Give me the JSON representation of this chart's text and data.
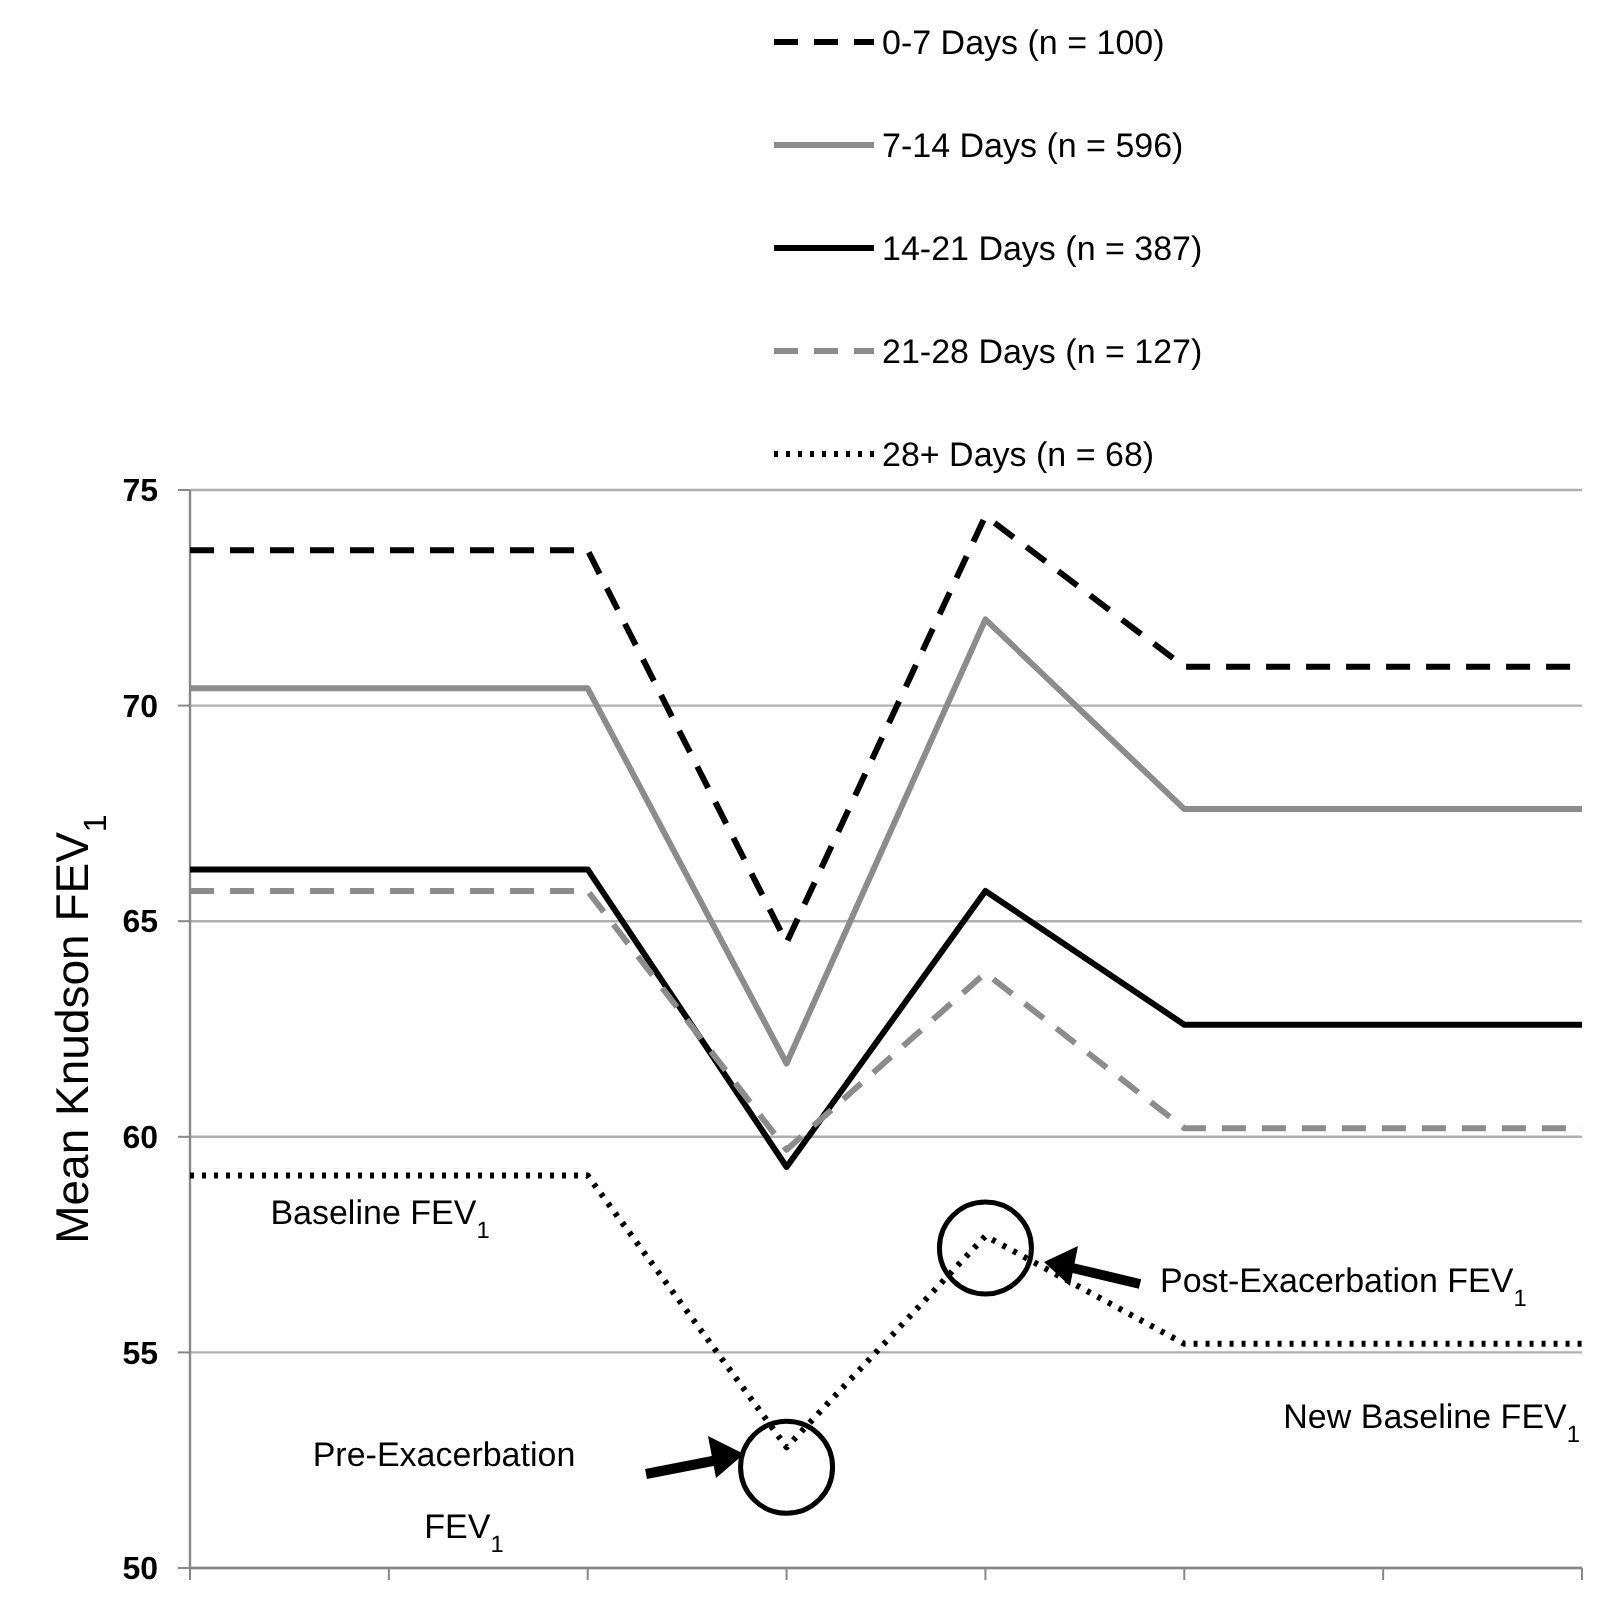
{
  "chart_data": {
    "type": "line",
    "ylabel": "Mean Knudson FEV$_{1}$",
    "categories": [
      null,
      null,
      null,
      null,
      null,
      null,
      null,
      null
    ],
    "series": [
      {
        "name": "0-7 Days (n = 100)",
        "color": "#000000",
        "line_style": "dashed",
        "values": [
          73.6,
          73.6,
          73.6,
          64.5,
          74.4,
          70.9,
          70.9,
          70.9
        ]
      },
      {
        "name": "7-14 Days (n = 596)",
        "color": "#8c8c8c",
        "line_style": "solid",
        "values": [
          70.4,
          70.4,
          70.4,
          61.7,
          72.0,
          67.6,
          67.6,
          67.6
        ]
      },
      {
        "name": "14-21 Days (n = 387)",
        "color": "#000000",
        "line_style": "solid",
        "values": [
          66.2,
          66.2,
          66.2,
          59.3,
          65.7,
          62.6,
          62.6,
          62.6
        ]
      },
      {
        "name": "21-28 Days (n = 127)",
        "color": "#8c8c8c",
        "line_style": "dashed",
        "values": [
          65.7,
          65.7,
          65.7,
          59.7,
          63.8,
          60.2,
          60.2,
          60.2
        ]
      },
      {
        "name": "28+ Days (n = 68)",
        "color": "#000000",
        "line_style": "dotted",
        "values": [
          59.1,
          59.1,
          59.1,
          52.8,
          57.7,
          55.2,
          55.2,
          55.2
        ]
      }
    ],
    "ylim": [
      50,
      75
    ],
    "yticks": [
      50,
      55,
      60,
      65,
      70,
      75
    ],
    "grid": "y",
    "legend": "top right",
    "tick_labels": "y",
    "marker": "none",
    "annotations": [
      "Baseline FEV$_{1}$",
      "Pre-Exacerbation FEV$_{1}$",
      "Post-Exacerbation FEV$_{1}$",
      "New Baseline FEV$_{1}$"
    ]
  }
}
